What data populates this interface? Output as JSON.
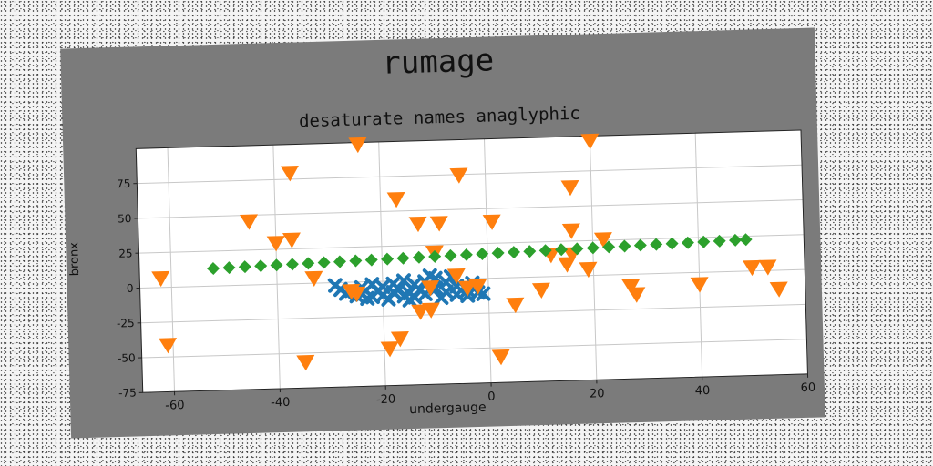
{
  "chart_data": {
    "type": "scatter",
    "suptitle": "rumage",
    "title": "desaturate names anaglyphic",
    "xlabel": "undergauge",
    "ylabel": "bronx",
    "xlim": [
      -66,
      60
    ],
    "ylim": [
      -75,
      100
    ],
    "xticks": [
      -60,
      -40,
      -20,
      0,
      20,
      40,
      60
    ],
    "yticks": [
      -75,
      -50,
      -25,
      0,
      25,
      50,
      75
    ],
    "grid": true,
    "series": [
      {
        "marker": "x",
        "color": "#1f77b4",
        "points": [
          [
            -29,
            -2
          ],
          [
            -28,
            -5
          ],
          [
            -27,
            -8
          ],
          [
            -26,
            -6
          ],
          [
            -25,
            -10
          ],
          [
            -24,
            -9
          ],
          [
            -23,
            -12
          ],
          [
            -22,
            -11
          ],
          [
            -21,
            -7
          ],
          [
            -20,
            -10
          ],
          [
            -19,
            -13
          ],
          [
            -18,
            -8
          ],
          [
            -17,
            -6
          ],
          [
            -16,
            -11
          ],
          [
            -15,
            -9
          ],
          [
            -14,
            -12
          ],
          [
            -13,
            -7
          ],
          [
            -12,
            -10
          ],
          [
            -18,
            -2
          ],
          [
            -16,
            0
          ],
          [
            -14,
            -3
          ],
          [
            -12,
            -1
          ],
          [
            -10,
            1
          ],
          [
            -8,
            -2
          ],
          [
            -6,
            -5
          ],
          [
            -4,
            -8
          ],
          [
            -2,
            -10
          ],
          [
            -10,
            -6
          ],
          [
            -8,
            -9
          ],
          [
            -6,
            -11
          ],
          [
            -4,
            -12
          ],
          [
            -20,
            -4
          ],
          [
            -22,
            -2
          ],
          [
            -11,
            3
          ],
          [
            -7,
            2
          ],
          [
            -3,
            -3
          ],
          [
            -1,
            -11
          ],
          [
            -24,
            -4
          ],
          [
            -15,
            -14
          ],
          [
            -9,
            -13
          ]
        ]
      },
      {
        "marker": "v",
        "color": "#ff7f0e",
        "points": [
          [
            -62,
            6
          ],
          [
            -61,
            -42
          ],
          [
            -45,
            45
          ],
          [
            -40,
            29
          ],
          [
            -37,
            31
          ],
          [
            -37,
            79
          ],
          [
            -35,
            -57
          ],
          [
            -33,
            3
          ],
          [
            -26,
            -7
          ],
          [
            -25,
            -9
          ],
          [
            -24,
            98
          ],
          [
            -19,
            -49
          ],
          [
            -17,
            -42
          ],
          [
            -17,
            58
          ],
          [
            -13,
            -23
          ],
          [
            -13,
            40
          ],
          [
            -11,
            -22
          ],
          [
            -11,
            -6
          ],
          [
            -10,
            19
          ],
          [
            -9,
            40
          ],
          [
            -6,
            2
          ],
          [
            -5,
            74
          ],
          [
            -4,
            -7
          ],
          [
            -2,
            -6
          ],
          [
            1,
            40
          ],
          [
            2,
            -57
          ],
          [
            5,
            -20
          ],
          [
            10,
            -10
          ],
          [
            12,
            15
          ],
          [
            15,
            8
          ],
          [
            16,
            63
          ],
          [
            16,
            32
          ],
          [
            16,
            15
          ],
          [
            19,
            4
          ],
          [
            20,
            96
          ],
          [
            22,
            25
          ],
          [
            27,
            -9
          ],
          [
            28,
            -15
          ],
          [
            40,
            -9
          ],
          [
            50,
            2
          ],
          [
            53,
            2
          ],
          [
            55,
            -14
          ]
        ]
      },
      {
        "marker": "D",
        "color": "#2ca02c",
        "points": [
          [
            -52,
            12.5
          ],
          [
            -49,
            12.8
          ],
          [
            -46,
            13.1
          ],
          [
            -43,
            13.4
          ],
          [
            -40,
            13.7
          ],
          [
            -37,
            14
          ],
          [
            -34,
            14.3
          ],
          [
            -31,
            14.6
          ],
          [
            -28,
            14.9
          ],
          [
            -25,
            15.2
          ],
          [
            -22,
            15.5
          ],
          [
            -19,
            15.8
          ],
          [
            -16,
            16.1
          ],
          [
            -13,
            16.4
          ],
          [
            -10,
            16.7
          ],
          [
            -7,
            17
          ],
          [
            -4,
            17.3
          ],
          [
            -1,
            17.6
          ],
          [
            2,
            17.9
          ],
          [
            5,
            18.2
          ],
          [
            8,
            18.5
          ],
          [
            11,
            18.8
          ],
          [
            14,
            19.1
          ],
          [
            17,
            19.4
          ],
          [
            20,
            19.7
          ],
          [
            23,
            20
          ],
          [
            26,
            20.3
          ],
          [
            29,
            20.6
          ],
          [
            32,
            20.9
          ],
          [
            35,
            21.2
          ],
          [
            38,
            21.5
          ],
          [
            41,
            21.8
          ],
          [
            44,
            22.1
          ],
          [
            47,
            22.4
          ],
          [
            49,
            22.6
          ]
        ]
      }
    ]
  }
}
